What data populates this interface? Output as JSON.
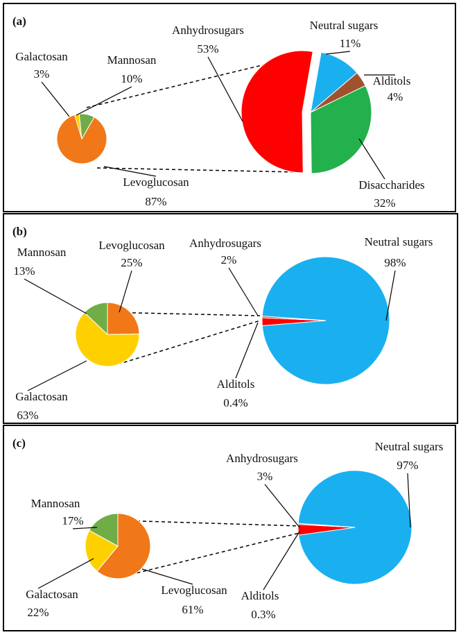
{
  "chart_data": [
    {
      "type": "pie",
      "title": "(a)",
      "categories": [
        "Neutral sugars",
        "Alditols",
        "Disaccharides",
        "Anhydrosugars"
      ],
      "values": [
        11,
        4,
        32,
        53
      ],
      "value_labels": [
        "11%",
        "4%",
        "32%",
        "53%"
      ],
      "colors": [
        "#1ab0f0",
        "#a0522d",
        "#22b14c",
        "#ff0000"
      ]
    },
    {
      "type": "pie",
      "categories": [
        "Levoglucosan",
        "Galactosan",
        "Mannosan"
      ],
      "values": [
        87,
        3,
        10
      ],
      "value_labels": [
        "87%",
        "3%",
        "10%"
      ],
      "colors": [
        "#f07818",
        "#ffd000",
        "#70ad47"
      ]
    },
    {
      "type": "pie",
      "title": "(b)",
      "categories": [
        "Neutral sugars",
        "Anhydrosugars",
        "Alditols"
      ],
      "values": [
        98,
        2,
        0.4
      ],
      "value_labels": [
        "98%",
        "2%",
        "0.4%"
      ],
      "colors": [
        "#1ab0f0",
        "#ff0000",
        "#a0522d"
      ]
    },
    {
      "type": "pie",
      "categories": [
        "Levoglucosan",
        "Galactosan",
        "Mannosan"
      ],
      "values": [
        25,
        63,
        13
      ],
      "value_labels": [
        "25%",
        "63%",
        "13%"
      ],
      "colors": [
        "#f07818",
        "#ffd000",
        "#70ad47"
      ]
    },
    {
      "type": "pie",
      "title": "(c)",
      "categories": [
        "Neutral sugars",
        "Anhydrosugars",
        "Alditols"
      ],
      "values": [
        97,
        3,
        0.3
      ],
      "value_labels": [
        "97%",
        "3%",
        "0.3%"
      ],
      "colors": [
        "#1ab0f0",
        "#ff0000",
        "#a0522d"
      ]
    },
    {
      "type": "pie",
      "categories": [
        "Levoglucosan",
        "Galactosan",
        "Mannosan"
      ],
      "values": [
        61,
        22,
        17
      ],
      "value_labels": [
        "61%",
        "22%",
        "17%"
      ],
      "colors": [
        "#f07818",
        "#ffd000",
        "#70ad47"
      ]
    }
  ]
}
